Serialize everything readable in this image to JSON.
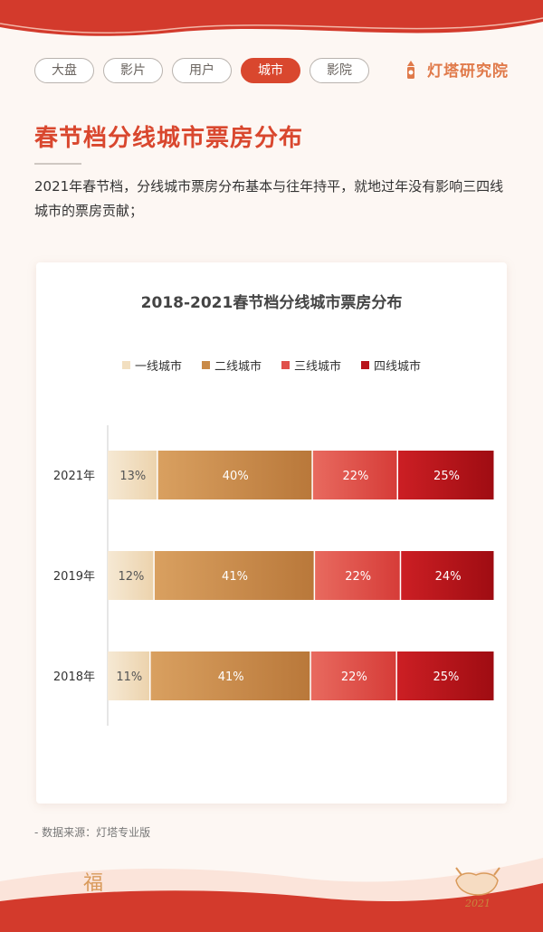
{
  "nav": {
    "tabs": [
      {
        "label": "大盘",
        "active": false
      },
      {
        "label": "影片",
        "active": false
      },
      {
        "label": "用户",
        "active": false
      },
      {
        "label": "城市",
        "active": true
      },
      {
        "label": "影院",
        "active": false
      }
    ]
  },
  "brand": {
    "name": "灯塔研究院",
    "icon": "lighthouse-logo"
  },
  "header": {
    "title": "春节档分线城市票房分布"
  },
  "intro": {
    "text": "2021年春节档，分线城市票房分布基本与往年持平，就地过年没有影响三四线城市的票房贡献；"
  },
  "chart_data": {
    "type": "bar",
    "orientation": "horizontal",
    "stacked": true,
    "percent": true,
    "title": "2018-2021春节档分线城市票房分布",
    "categories": [
      "2021年",
      "2019年",
      "2018年"
    ],
    "series": [
      {
        "name": "一线城市",
        "color": "#f2dfc0",
        "values": [
          13,
          12,
          11
        ]
      },
      {
        "name": "二线城市",
        "color": "#c98a48",
        "values": [
          40,
          41,
          41
        ]
      },
      {
        "name": "三线城市",
        "color": "#e0504a",
        "values": [
          22,
          22,
          22
        ]
      },
      {
        "name": "四线城市",
        "color": "#b8141a",
        "values": [
          25,
          24,
          25
        ]
      }
    ],
    "legend_position": "top",
    "grid": false
  },
  "footer": {
    "source": "- 数据来源：灯塔专业版",
    "decor_char": "福",
    "year_mark": "2021"
  },
  "colors": {
    "accent": "#d9472e",
    "brand": "#e07a4a"
  }
}
